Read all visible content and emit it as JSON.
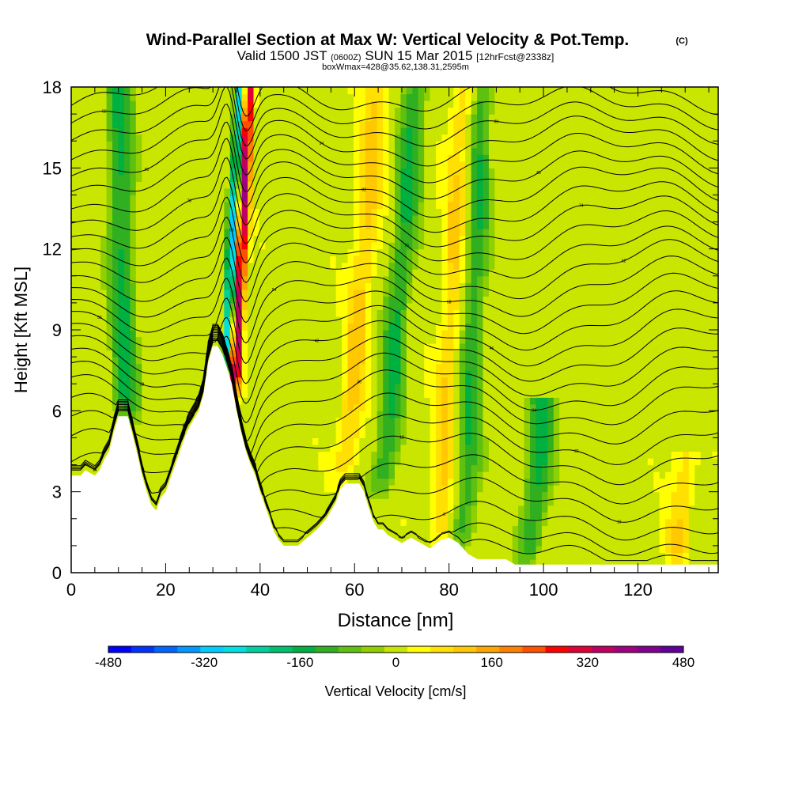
{
  "chart_data": {
    "type": "heatmap",
    "title": "Wind-Parallel Section at Max W: Vertical Velocity & Pot.Temp.",
    "title_mark": "(C)",
    "subtitle": {
      "valid_prefix": "Valid 1500 JST",
      "utc": "(0600Z)",
      "date": "SUN 15 Mar 2015",
      "forecast": "[12hrFcst@2338z]"
    },
    "subtitle2": "boxWmax=428@35.62,138.31,2595m",
    "xlabel": "Distance [nm]",
    "ylabel": "Height [Kft MSL]",
    "xlim": [
      0,
      137
    ],
    "ylim": [
      0,
      18
    ],
    "x_ticks": [
      "0",
      "20",
      "40",
      "60",
      "80",
      "100",
      "120"
    ],
    "y_ticks": [
      "0",
      "3",
      "6",
      "9",
      "12",
      "15",
      "18"
    ],
    "colorbar": {
      "label": "Vertical Velocity [cm/s]",
      "min": -480,
      "max": 480,
      "step": 40,
      "tick_labels": [
        "-480",
        "-320",
        "-160",
        "0",
        "160",
        "320",
        "480"
      ],
      "colors": [
        "#0000ff",
        "#0033ff",
        "#0066ff",
        "#0099ff",
        "#00ccff",
        "#00e0e0",
        "#00d0a0",
        "#00c070",
        "#00b040",
        "#30b020",
        "#60c010",
        "#90d000",
        "#c8e600",
        "#ffff00",
        "#ffe000",
        "#ffc800",
        "#ffa500",
        "#ff8000",
        "#ff5000",
        "#ff0000",
        "#e0003a",
        "#c00060",
        "#a00080",
        "#800090",
        "#600099"
      ]
    },
    "terrain_profile": [
      [
        0,
        3.6
      ],
      [
        2,
        3.6
      ],
      [
        3,
        3.8
      ],
      [
        5,
        3.6
      ],
      [
        6,
        3.8
      ],
      [
        7,
        4.2
      ],
      [
        8,
        4.5
      ],
      [
        9,
        5.2
      ],
      [
        10,
        5.8
      ],
      [
        12,
        5.8
      ],
      [
        13,
        5.1
      ],
      [
        14,
        4.4
      ],
      [
        15,
        3.6
      ],
      [
        16,
        3.0
      ],
      [
        17,
        2.5
      ],
      [
        18,
        2.3
      ],
      [
        19,
        2.8
      ],
      [
        20,
        3.0
      ],
      [
        21,
        3.5
      ],
      [
        22,
        4.0
      ],
      [
        23,
        4.5
      ],
      [
        24,
        5.0
      ],
      [
        25,
        5.4
      ],
      [
        26,
        5.7
      ],
      [
        27,
        6.0
      ],
      [
        28,
        6.6
      ],
      [
        29,
        7.8
      ],
      [
        30,
        8.4
      ],
      [
        31,
        8.4
      ],
      [
        32,
        8.1
      ],
      [
        33,
        7.6
      ],
      [
        34,
        7.0
      ],
      [
        35,
        6.0
      ],
      [
        36,
        5.2
      ],
      [
        37,
        4.5
      ],
      [
        38,
        4.0
      ],
      [
        39,
        3.6
      ],
      [
        40,
        3.0
      ],
      [
        41,
        2.5
      ],
      [
        42,
        2.0
      ],
      [
        43,
        1.5
      ],
      [
        44,
        1.2
      ],
      [
        45,
        1.0
      ],
      [
        47,
        1.0
      ],
      [
        48,
        1.0
      ],
      [
        50,
        1.3
      ],
      [
        52,
        1.6
      ],
      [
        54,
        2.0
      ],
      [
        56,
        2.6
      ],
      [
        57,
        3.1
      ],
      [
        58,
        3.3
      ],
      [
        61,
        3.3
      ],
      [
        62,
        3.0
      ],
      [
        63,
        2.4
      ],
      [
        64,
        1.9
      ],
      [
        65,
        1.6
      ],
      [
        66,
        1.6
      ],
      [
        67,
        1.4
      ],
      [
        68,
        1.3
      ],
      [
        70,
        1.1
      ],
      [
        72,
        1.3
      ],
      [
        74,
        1.1
      ],
      [
        76,
        0.9
      ],
      [
        78,
        1.2
      ],
      [
        80,
        1.3
      ],
      [
        82,
        1.1
      ],
      [
        84,
        0.7
      ],
      [
        86,
        0.5
      ],
      [
        88,
        0.5
      ],
      [
        92,
        0.5
      ],
      [
        94,
        0.3
      ],
      [
        137,
        0.3
      ]
    ],
    "theta_contours": [
      {
        "label": "14",
        "base": 0.7,
        "amp": 0.3
      },
      {
        "label": "2",
        "base": 1.2,
        "amp": 0.4
      },
      {
        "label": "6",
        "base": 1.9,
        "amp": 0.5
      },
      {
        "label": "10",
        "base": 2.7,
        "amp": 0.6
      },
      {
        "label": "14",
        "base": 3.5,
        "amp": 0.7
      },
      {
        "label": "18",
        "base": 4.3,
        "amp": 0.8
      },
      {
        "label": "22",
        "base": 5.0,
        "amp": 0.8
      },
      {
        "label": "26",
        "base": 5.7,
        "amp": 0.8
      },
      {
        "label": "30",
        "base": 6.4,
        "amp": 0.9
      },
      {
        "label": "34",
        "base": 7.0,
        "amp": 0.9
      },
      {
        "label": "38",
        "base": 7.6,
        "amp": 0.9
      },
      {
        "label": "42",
        "base": 8.2,
        "amp": 0.9
      },
      {
        "label": "46",
        "base": 8.8,
        "amp": 0.9
      },
      {
        "label": "50",
        "base": 9.4,
        "amp": 0.9
      },
      {
        "label": "54",
        "base": 10.0,
        "amp": 0.9
      },
      {
        "label": "58",
        "base": 10.6,
        "amp": 0.9
      },
      {
        "label": "62",
        "base": 11.2,
        "amp": 0.9
      },
      {
        "label": "66",
        "base": 11.8,
        "amp": 0.8
      },
      {
        "label": "70",
        "base": 12.4,
        "amp": 0.8
      },
      {
        "label": "74",
        "base": 13.0,
        "amp": 0.8
      },
      {
        "label": "78",
        "base": 13.6,
        "amp": 0.8
      },
      {
        "label": "82",
        "base": 14.2,
        "amp": 0.8
      },
      {
        "label": "86",
        "base": 14.8,
        "amp": 0.7
      },
      {
        "label": "90",
        "base": 15.4,
        "amp": 0.7
      },
      {
        "label": "94",
        "base": 16.0,
        "amp": 0.7
      },
      {
        "label": "98",
        "base": 16.6,
        "amp": 0.6
      },
      {
        "label": "02",
        "base": 17.2,
        "amp": 0.6
      },
      {
        "label": "06",
        "base": 17.8,
        "amp": 0.6
      }
    ],
    "w_features": [
      {
        "type": "updraft",
        "x_at_bottom": 34.5,
        "x_at_top": 37.5,
        "bottom": 6.8,
        "top": 18,
        "max": 428
      },
      {
        "type": "downdraft",
        "x_at_bottom": 33.0,
        "x_at_top": 36.0,
        "bottom": 7.5,
        "top": 18,
        "min": -360
      },
      {
        "type": "downdraft",
        "x_at_bottom": 11.5,
        "x_at_top": 10.0,
        "bottom": 5.8,
        "top": 18,
        "min": -150
      },
      {
        "type": "downdraft",
        "x_at_bottom": 66.0,
        "x_at_top": 73.0,
        "bottom": 3.0,
        "top": 18,
        "min": -140
      },
      {
        "type": "downdraft",
        "x_at_bottom": 83.0,
        "x_at_top": 87.0,
        "bottom": 1.0,
        "top": 18,
        "min": -130
      },
      {
        "type": "downdraft",
        "x_at_bottom": 97.0,
        "x_at_top": 100.0,
        "bottom": 0.5,
        "top": 6.0,
        "min": -150
      },
      {
        "type": "updraft",
        "x_at_bottom": 58.0,
        "x_at_top": 65.0,
        "bottom": 3.5,
        "top": 18,
        "max": 120
      },
      {
        "type": "updraft",
        "x_at_bottom": 78.0,
        "x_at_top": 83.0,
        "bottom": 1.0,
        "top": 18,
        "max": 110
      },
      {
        "type": "updraft",
        "x_at_bottom": 128.0,
        "x_at_top": 130.0,
        "bottom": 0.4,
        "top": 4.0,
        "max": 100
      }
    ]
  }
}
